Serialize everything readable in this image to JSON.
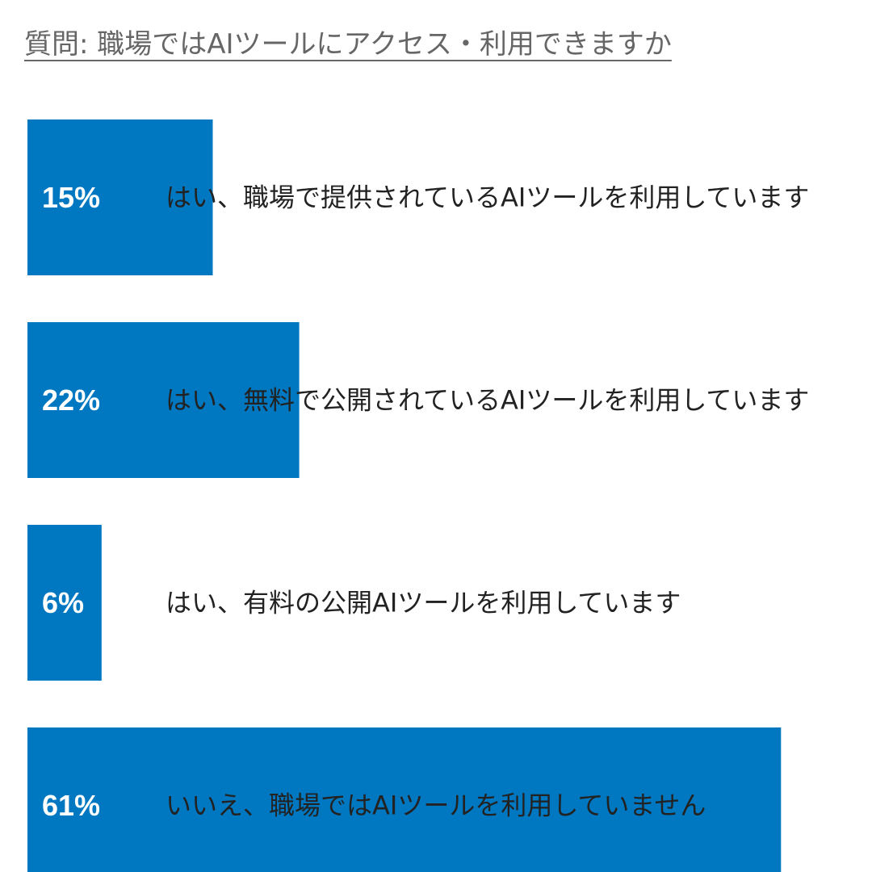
{
  "chart_data": {
    "type": "bar",
    "orientation": "horizontal",
    "title": "質問: 職場ではAIツールにアクセス・利用できますか",
    "categories": [
      "はい、職場で提供されているAIツールを利用しています",
      "はい、無料で公開されているAIツールを利用しています",
      "はい、有料の公開AIツールを利用しています",
      "いいえ、職場ではAIツールを利用していません"
    ],
    "values": [
      15,
      22,
      6,
      61
    ],
    "value_labels": [
      "15%",
      "22%",
      "6%",
      "61%"
    ],
    "unit": "%",
    "bar_color": "#0078C1",
    "label_color": "#ffffff",
    "category_color": "#222222",
    "grid": false,
    "legend": "none"
  }
}
